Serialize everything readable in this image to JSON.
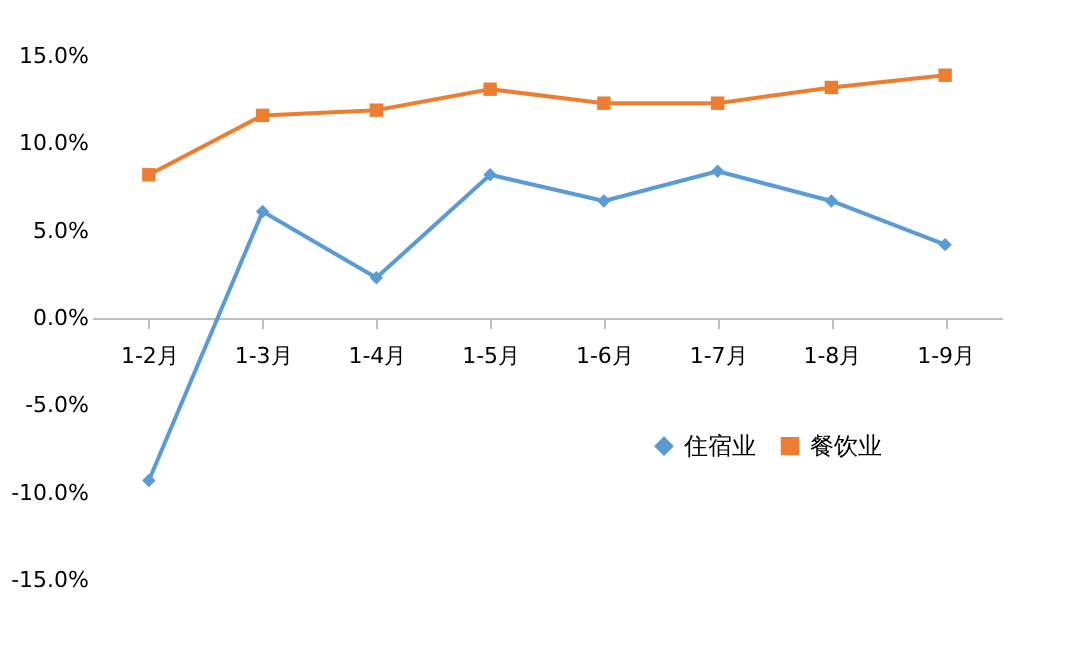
{
  "chart_data": {
    "type": "line",
    "categories": [
      "1-2月",
      "1-3月",
      "1-4月",
      "1-5月",
      "1-6月",
      "1-7月",
      "1-8月",
      "1-9月"
    ],
    "series": [
      {
        "name": "住宿业",
        "color": "#5b9bd5",
        "marker": "diamond",
        "values": [
          -9.3,
          6.1,
          2.3,
          8.2,
          6.7,
          8.4,
          6.7,
          4.2
        ]
      },
      {
        "name": "餐饮业",
        "color": "#ed7d31",
        "marker": "square",
        "values": [
          8.2,
          11.6,
          11.9,
          13.1,
          12.3,
          12.3,
          13.2,
          13.9
        ]
      }
    ],
    "ylim": [
      -15,
      15
    ],
    "yticks": [
      {
        "value": -15,
        "label": "-15.0%"
      },
      {
        "value": -10,
        "label": "-10.0%"
      },
      {
        "value": -5,
        "label": "-5.0%"
      },
      {
        "value": 0,
        "label": "0.0%"
      },
      {
        "value": 5,
        "label": "5.0%"
      },
      {
        "value": 10,
        "label": "10.0%"
      },
      {
        "value": 15,
        "label": "15.0%"
      }
    ],
    "grid": false,
    "legend": "bottom right",
    "line_style": "solid"
  }
}
